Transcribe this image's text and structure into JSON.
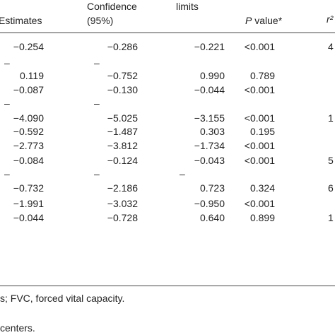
{
  "table": {
    "headers": {
      "estimates": "Estimates",
      "confidence_line1": "Confidence",
      "confidence_line2": "(95%)",
      "limits": "limits",
      "p_italic": "P",
      "p_rest": " value*",
      "r2": "r²"
    },
    "rows": [
      {
        "est": "−0.254",
        "lo": "−0.286",
        "hi": "−0.221",
        "p": "<0.001",
        "r2": "4"
      },
      {
        "est": "",
        "lo": "–",
        "hi": "",
        "p": "",
        "r2": "",
        "dash_est": "–"
      },
      {
        "est": "0.119",
        "lo": "−0.752",
        "hi": "0.990",
        "p": "0.789",
        "r2": ""
      },
      {
        "est": "−0.087",
        "lo": "−0.130",
        "hi": "−0.044",
        "p": "<0.001",
        "r2": ""
      },
      {
        "est": "",
        "lo": "–",
        "hi": "",
        "p": "",
        "r2": "",
        "dash_est": "–"
      },
      {
        "est": "−4.090",
        "lo": "−5.025",
        "hi": "−3.155",
        "p": "<0.001",
        "r2": "1"
      },
      {
        "est": "−0.592",
        "lo": "−1.487",
        "hi": "0.303",
        "p": "0.195",
        "r2": ""
      },
      {
        "est": "−2.773",
        "lo": "−3.812",
        "hi": "−1.734",
        "p": "<0.001",
        "r2": ""
      },
      {
        "est": "−0.084",
        "lo": "−0.124",
        "hi": "−0.043",
        "p": "<0.001",
        "r2": "5"
      },
      {
        "est": "",
        "lo": "–",
        "hi": "–",
        "p": "",
        "r2": "",
        "dash_est": "–"
      },
      {
        "est": "−0.732",
        "lo": "−2.186",
        "hi": "0.723",
        "p": "0.324",
        "r2": "6"
      },
      {
        "est": "−1.991",
        "lo": "−3.032",
        "hi": "−0.950",
        "p": "<0.001",
        "r2": ""
      },
      {
        "est": "−0.044",
        "lo": "−0.728",
        "hi": "0.640",
        "p": "0.899",
        "r2": "1"
      }
    ]
  },
  "footnotes": {
    "line1": "s; FVC, forced vital capacity.",
    "line2": "centers."
  }
}
